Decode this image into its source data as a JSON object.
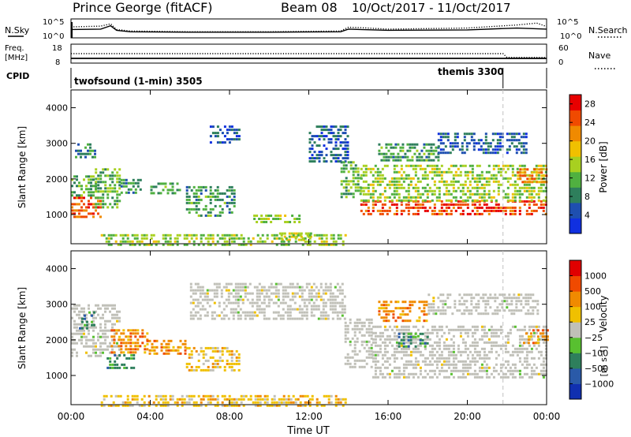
{
  "chart_data": [
    {
      "type": "line",
      "header": {
        "site": "Prince George (fitACF)",
        "beam": "Beam 08",
        "date_range": "10/Oct/2017 - 11/Oct/2017"
      },
      "noise_panel": {
        "left_label": "N.Sky",
        "right_label": "N.Search",
        "left_ticks": [
          "10^5",
          "10^0"
        ],
        "right_ticks": [
          "10^5",
          "10^0"
        ],
        "series": [
          {
            "name": "N.Sky",
            "style": "solid",
            "x": [
              0,
              1.5,
              2.0,
              2.3,
              3.0,
              6,
              10,
              13.6,
              14.0,
              14.6,
              16,
              20,
              22.5,
              24
            ],
            "y": [
              2.2,
              2.3,
              3.2,
              2.0,
              1.6,
              1.5,
              1.5,
              1.6,
              2.3,
              2.2,
              2.0,
              2.1,
              2.6,
              2.3
            ]
          },
          {
            "name": "N.Search",
            "style": "dotted",
            "x": [
              0,
              1.5,
              2.0,
              2.3,
              3.0,
              6,
              10,
              13.6,
              14.0,
              14.6,
              16,
              20,
              22.5,
              23.5,
              24
            ],
            "y": [
              2.9,
              3.1,
              3.7,
              2.2,
              1.8,
              1.6,
              1.6,
              1.8,
              2.8,
              2.7,
              2.3,
              2.6,
              3.4,
              3.9,
              3.0
            ]
          }
        ]
      },
      "freq_panel": {
        "left_label": "Freq.",
        "left_unit": "[MHz]",
        "right_label": "Nave",
        "left_ticks": [
          "18",
          "8"
        ],
        "right_ticks": [
          "60",
          "0"
        ],
        "series": [
          {
            "name": "Freq.",
            "style": "solid",
            "x": [
              0,
              24
            ],
            "y": [
              10.5,
              10.5
            ]
          },
          {
            "name": "Nave",
            "style": "dotted",
            "x": [
              0,
              21.8,
              22.0,
              24
            ],
            "y": [
              30,
              30,
              18,
              18
            ]
          }
        ]
      },
      "cpid_panel": {
        "label": "CPID",
        "segments": [
          {
            "name": "twofsound (1-min) 3505",
            "start": 0,
            "end": 21.8
          },
          {
            "name": "themis 3300",
            "start": 21.8,
            "end": 24
          }
        ]
      }
    },
    {
      "type": "heatmap",
      "ylabel": "Slant Range [km]",
      "ylim": [
        180,
        4500
      ],
      "yticks": [
        1000,
        2000,
        3000,
        4000
      ],
      "xlim": [
        0,
        24
      ],
      "colorbar": {
        "label": "Power [dB]",
        "ticks": [
          4,
          8,
          12,
          16,
          20,
          24,
          28
        ],
        "range": [
          0,
          30
        ],
        "colors": [
          "#1030e0",
          "#1e4fb0",
          "#2e7f5c",
          "#50b040",
          "#a8d020",
          "#f0c000",
          "#f08a00",
          "#f04a00",
          "#e80000"
        ]
      },
      "echo_regions": [
        {
          "x0": 0.0,
          "x1": 1.5,
          "y0": 900,
          "y1": 1500,
          "level": 24
        },
        {
          "x0": 0.0,
          "x1": 1.3,
          "y0": 1500,
          "y1": 2100,
          "level": 12
        },
        {
          "x0": 0.2,
          "x1": 1.2,
          "y0": 2600,
          "y1": 3000,
          "level": 8
        },
        {
          "x0": 1.2,
          "x1": 2.5,
          "y0": 1200,
          "y1": 2300,
          "level": 12
        },
        {
          "x0": 2.5,
          "x1": 3.5,
          "y0": 1600,
          "y1": 2000,
          "level": 8
        },
        {
          "x0": 4.0,
          "x1": 5.5,
          "y0": 1600,
          "y1": 1900,
          "level": 10
        },
        {
          "x0": 5.8,
          "x1": 8.2,
          "y0": 1000,
          "y1": 1800,
          "level": 10
        },
        {
          "x0": 7.0,
          "x1": 8.5,
          "y0": 3000,
          "y1": 3500,
          "level": 6
        },
        {
          "x0": 9.2,
          "x1": 11.5,
          "y0": 800,
          "y1": 1000,
          "level": 14
        },
        {
          "x0": 10.5,
          "x1": 12.2,
          "y0": 300,
          "y1": 500,
          "level": 16
        },
        {
          "x0": 1.5,
          "x1": 13.8,
          "y0": 180,
          "y1": 450,
          "level": 14
        },
        {
          "x0": 12.0,
          "x1": 14.0,
          "y0": 2500,
          "y1": 3500,
          "level": 6
        },
        {
          "x0": 13.6,
          "x1": 14.6,
          "y0": 1500,
          "y1": 2500,
          "level": 12
        },
        {
          "x0": 14.6,
          "x1": 24.0,
          "y0": 1000,
          "y1": 1400,
          "level": 26
        },
        {
          "x0": 14.6,
          "x1": 24.0,
          "y0": 1400,
          "y1": 2400,
          "level": 14
        },
        {
          "x0": 15.5,
          "x1": 18.5,
          "y0": 2500,
          "y1": 3000,
          "level": 10
        },
        {
          "x0": 18.5,
          "x1": 23.0,
          "y0": 2700,
          "y1": 3300,
          "level": 6
        },
        {
          "x0": 22.5,
          "x1": 24.0,
          "y0": 1900,
          "y1": 2300,
          "level": 22
        }
      ]
    },
    {
      "type": "heatmap",
      "ylabel": "Slant Range [km]",
      "ylim": [
        180,
        4500
      ],
      "yticks": [
        1000,
        2000,
        3000,
        4000
      ],
      "xlim": [
        0,
        24
      ],
      "xticks": [
        "00:00",
        "04:00",
        "08:00",
        "12:00",
        "16:00",
        "20:00",
        "00:00"
      ],
      "xlabel": "Time UT",
      "colorbar": {
        "label": "Velocity",
        "unit": "[m s⁻¹]",
        "ticks": [
          "1000",
          "500",
          "100",
          "25",
          "−25",
          "−100",
          "−500",
          "−1000"
        ],
        "colors": [
          "#1030b0",
          "#2a5aa8",
          "#2e7f5c",
          "#58c030",
          "#c0c0b8",
          "#f0c000",
          "#f08a00",
          "#f04a00",
          "#e00000"
        ]
      },
      "echo_regions": [
        {
          "x0": 0.0,
          "x1": 2.5,
          "y0": 1500,
          "y1": 3000,
          "level": 0
        },
        {
          "x0": 0.4,
          "x1": 1.2,
          "y0": 2300,
          "y1": 2800,
          "level": 2
        },
        {
          "x0": 2.0,
          "x1": 3.8,
          "y0": 1600,
          "y1": 2300,
          "level": -2
        },
        {
          "x0": 1.8,
          "x1": 3.2,
          "y0": 1200,
          "y1": 1600,
          "level": 2
        },
        {
          "x0": 3.8,
          "x1": 5.8,
          "y0": 1600,
          "y1": 2000,
          "level": -2
        },
        {
          "x0": 5.8,
          "x1": 8.5,
          "y0": 1100,
          "y1": 1800,
          "level": -1
        },
        {
          "x0": 6.0,
          "x1": 13.8,
          "y0": 2600,
          "y1": 3600,
          "level": 0
        },
        {
          "x0": 1.5,
          "x1": 13.8,
          "y0": 180,
          "y1": 450,
          "level": -1
        },
        {
          "x0": 13.8,
          "x1": 15.2,
          "y0": 1200,
          "y1": 2600,
          "level": 0
        },
        {
          "x0": 15.2,
          "x1": 24.0,
          "y0": 900,
          "y1": 2400,
          "level": 0
        },
        {
          "x0": 15.5,
          "x1": 18.0,
          "y0": 2500,
          "y1": 3100,
          "level": -2
        },
        {
          "x0": 16.5,
          "x1": 18.0,
          "y0": 1800,
          "y1": 2200,
          "level": 2
        },
        {
          "x0": 18.0,
          "x1": 23.5,
          "y0": 2700,
          "y1": 3300,
          "level": 0
        },
        {
          "x0": 22.8,
          "x1": 24.0,
          "y0": 1900,
          "y1": 2300,
          "level": -2
        }
      ]
    }
  ]
}
